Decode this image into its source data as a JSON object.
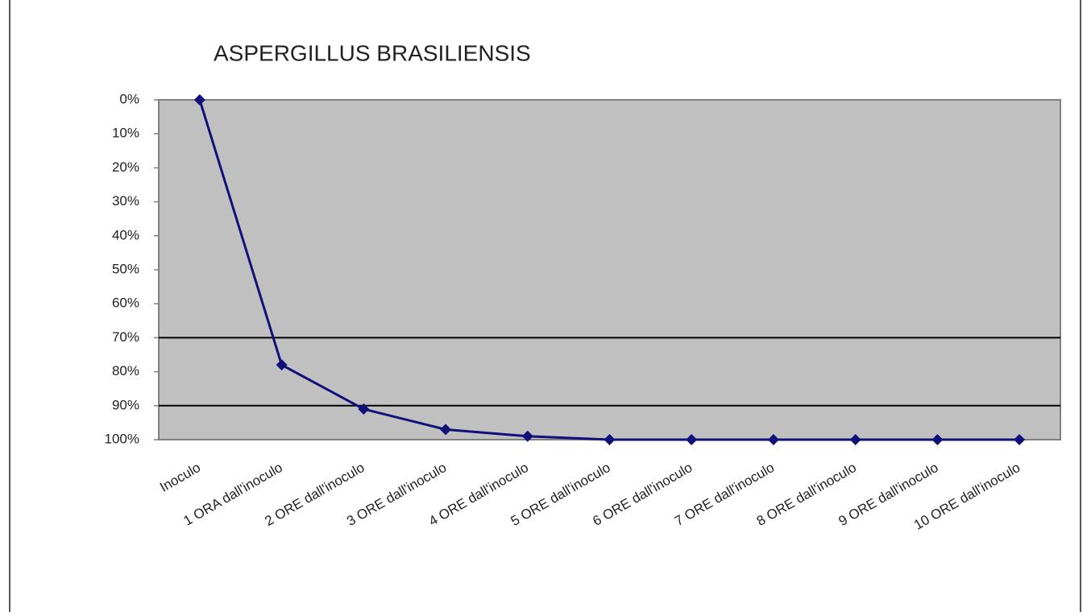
{
  "chart_data": {
    "type": "line",
    "title": "ASPERGILLUS BRASILIENSIS",
    "categories": [
      "Inoculo",
      "1 ORA dall'inoculo",
      "2 ORE dall'inoculo",
      "3 ORE dall'inoculo",
      "4 ORE dall'inoculo",
      "5 ORE dall'inoculo",
      "6 ORE dall'inoculo",
      "7 ORE dall'inoculo",
      "8 ORE dall'inoculo",
      "9 ORE dall'inoculo",
      "10 ORE dall'inoculo"
    ],
    "series": [
      {
        "name": "ASPERGILLUS BRASILIENSIS",
        "color": "#10107a",
        "values": [
          0,
          78,
          91,
          97,
          99,
          100,
          100,
          100,
          100,
          100,
          100
        ]
      }
    ],
    "ylim": [
      0,
      100
    ],
    "y_inverted": true,
    "yticks": [
      {
        "value": 0,
        "label": "0%"
      },
      {
        "value": 10,
        "label": "10%"
      },
      {
        "value": 20,
        "label": "20%"
      },
      {
        "value": 30,
        "label": "30%"
      },
      {
        "value": 40,
        "label": "40%"
      },
      {
        "value": 50,
        "label": "50%"
      },
      {
        "value": 60,
        "label": "60%"
      },
      {
        "value": 70,
        "label": "70%"
      },
      {
        "value": 80,
        "label": "80%"
      },
      {
        "value": 90,
        "label": "90%"
      },
      {
        "value": 100,
        "label": "100%"
      }
    ],
    "hlines": [
      70,
      90
    ],
    "legend": false,
    "plot_background": "#c0c0c0"
  }
}
